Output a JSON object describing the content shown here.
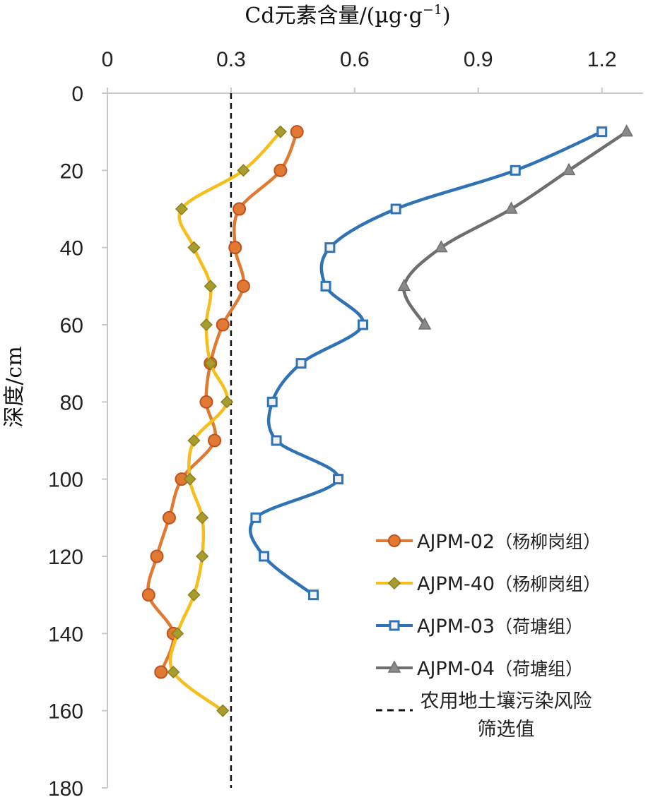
{
  "chart_data": {
    "type": "line",
    "title": "",
    "xlabel": "Cd元素含量/(µg·g",
    "xlabel_sup": "−1",
    "xlabel_close": ")",
    "ylabel": "深度/cm",
    "xlim": [
      0,
      1.3
    ],
    "ylim": [
      0,
      180
    ],
    "y_inverted": true,
    "x_axis_position": "top",
    "x_ticks": [
      "0",
      "0.3",
      "0.6",
      "0.9",
      "1.2"
    ],
    "x_tick_values": [
      0,
      0.3,
      0.6,
      0.9,
      1.2
    ],
    "y_ticks": [
      "0",
      "20",
      "40",
      "60",
      "80",
      "100",
      "120",
      "140",
      "160",
      "180"
    ],
    "y_tick_values": [
      0,
      20,
      40,
      60,
      80,
      100,
      120,
      140,
      160,
      180
    ],
    "grid": false,
    "legend_position": "bottom-right",
    "series": [
      {
        "name": "AJPM-02（杨柳岗组）",
        "label": "AJPM-02",
        "group": "（杨柳岗组）",
        "color": "#E07A33",
        "marker": "circle",
        "x": [
          0.46,
          0.42,
          0.32,
          0.31,
          0.33,
          0.28,
          0.25,
          0.24,
          0.26,
          0.18,
          0.15,
          0.12,
          0.1,
          0.16,
          0.13
        ],
        "y": [
          10,
          20,
          30,
          40,
          50,
          60,
          70,
          80,
          90,
          100,
          110,
          120,
          130,
          140,
          150
        ]
      },
      {
        "name": "AJPM-40（杨柳岗组）",
        "label": "AJPM-40",
        "group": "（杨柳岗组）",
        "color": "#F6BE1A",
        "marker": "diamond",
        "x": [
          0.42,
          0.33,
          0.18,
          0.21,
          0.25,
          0.24,
          0.25,
          0.29,
          0.21,
          0.2,
          0.23,
          0.23,
          0.21,
          0.17,
          0.16,
          0.28
        ],
        "y": [
          10,
          20,
          30,
          40,
          50,
          60,
          70,
          80,
          90,
          100,
          110,
          120,
          130,
          140,
          150,
          160
        ]
      },
      {
        "name": "AJPM-03（荷塘组）",
        "label": "AJPM-03",
        "group": "（荷塘组）",
        "color": "#2F73B6",
        "marker": "square",
        "x": [
          1.2,
          0.99,
          0.7,
          0.54,
          0.53,
          0.62,
          0.47,
          0.4,
          0.41,
          0.56,
          0.36,
          0.38,
          0.5
        ],
        "y": [
          10,
          20,
          30,
          40,
          50,
          60,
          70,
          80,
          90,
          100,
          110,
          120,
          130
        ]
      },
      {
        "name": "AJPM-04（荷塘组）",
        "label": "AJPM-04",
        "group": "（荷塘组）",
        "color": "#6E6E6E",
        "marker": "triangle",
        "x": [
          1.26,
          1.12,
          0.98,
          0.81,
          0.72,
          0.77
        ],
        "y": [
          10,
          20,
          30,
          40,
          50,
          60
        ]
      }
    ],
    "reference_line": {
      "x": 0.3,
      "label_line1": "农用地土壤污染风险",
      "label_line2": "筛选值",
      "style": "dashed",
      "color": "#111111"
    }
  }
}
